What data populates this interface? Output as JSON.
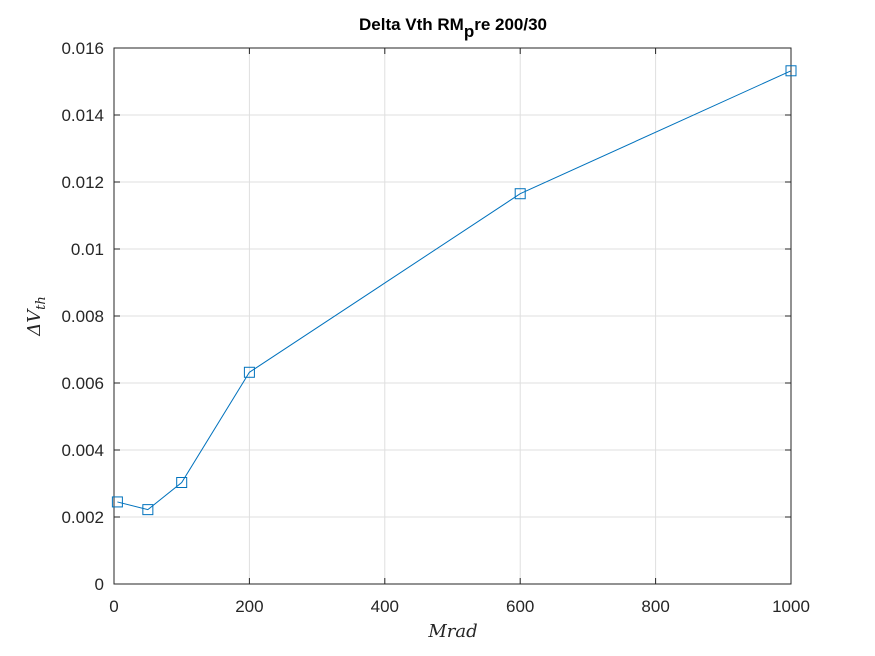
{
  "chart_data": {
    "type": "line",
    "title": "Delta Vth RM",
    "title_subscript": "p",
    "title_suffix": "re 200/30",
    "xlabel": "Mrad",
    "ylabel_base": "ΔV",
    "ylabel_subscript": "th",
    "xlim": [
      0,
      1000
    ],
    "ylim": [
      0,
      0.016
    ],
    "xticks": [
      0,
      200,
      400,
      600,
      800,
      1000
    ],
    "xtick_labels": [
      "0",
      "200",
      "400",
      "600",
      "800",
      "1000"
    ],
    "yticks": [
      0,
      0.002,
      0.004,
      0.006,
      0.008,
      0.01,
      0.012,
      0.014,
      0.016
    ],
    "ytick_labels": [
      "0",
      "0.002",
      "0.004",
      "0.006",
      "0.008",
      "0.01",
      "0.012",
      "0.014",
      "0.016"
    ],
    "grid": true,
    "box": true,
    "series": [
      {
        "x": [
          5,
          50,
          100,
          200,
          600,
          1000
        ],
        "y": [
          0.00245,
          0.00222,
          0.00303,
          0.00632,
          0.01165,
          0.01532
        ],
        "marker": "square",
        "color": "#0072BD"
      }
    ]
  }
}
